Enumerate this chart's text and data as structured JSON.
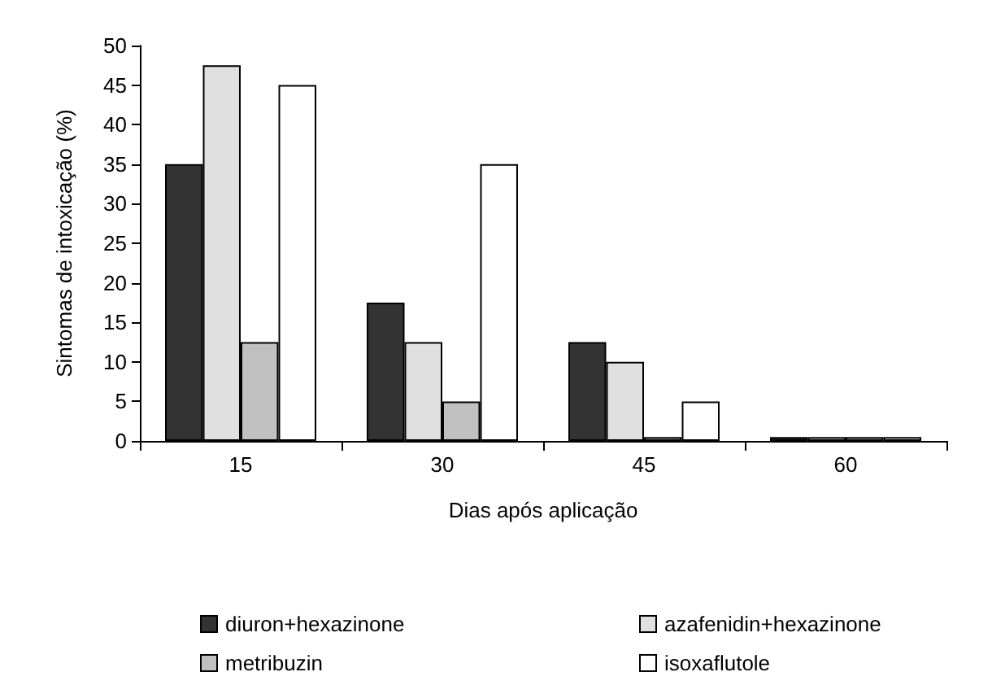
{
  "chart_data": {
    "type": "bar",
    "xlabel": "Dias após aplicação",
    "ylabel": "Sintomas de intoxicação (%)",
    "categories": [
      "15",
      "30",
      "45",
      "60"
    ],
    "series": [
      {
        "name": "diuron+hexazinone",
        "color": "#333333",
        "values": [
          35,
          17.5,
          12.5,
          0.5
        ]
      },
      {
        "name": "azafenidin+hexazinone",
        "color": "#e0e0e0",
        "values": [
          47.5,
          12.5,
          10,
          0.5
        ]
      },
      {
        "name": "metribuzin",
        "color": "#c0c0c0",
        "values": [
          12.5,
          5,
          0.5,
          0.5
        ]
      },
      {
        "name": "isoxaflutole",
        "color": "#ffffff",
        "values": [
          45,
          35,
          5,
          0.5
        ]
      }
    ],
    "ylim": [
      0,
      50
    ],
    "yticks": [
      0,
      5,
      10,
      15,
      20,
      25,
      30,
      35,
      40,
      45,
      50
    ],
    "grid": false,
    "legend": "bottom"
  }
}
